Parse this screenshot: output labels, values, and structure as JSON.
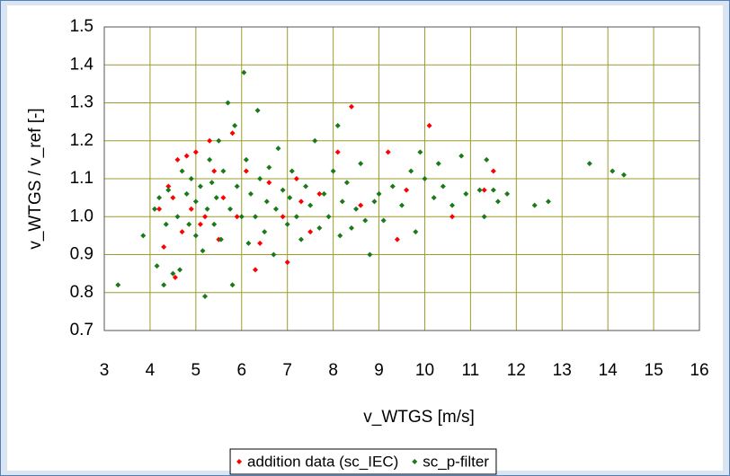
{
  "chart_data": {
    "type": "scatter",
    "xlabel": "v_WTGS [m/s]",
    "ylabel": "v_WTGS / v_ref [-]",
    "xlim": [
      3,
      16
    ],
    "xticks": [
      3,
      4,
      5,
      6,
      7,
      8,
      9,
      10,
      11,
      12,
      13,
      14,
      15,
      16
    ],
    "ylim": [
      0.7,
      1.5
    ],
    "yticks": [
      0.7,
      0.8,
      0.9,
      {
        "value": 1,
        "label": "1.0"
      },
      1.1,
      1.2,
      1.3,
      1.4,
      1.5
    ],
    "grid": true,
    "legend": "bottom",
    "series": [
      {
        "name": "addition data (sc_IEC)",
        "color": "#ff0000",
        "x": [
          4.2,
          4.3,
          4.4,
          4.5,
          4.55,
          4.6,
          4.7,
          4.8,
          4.9,
          5.0,
          5.1,
          5.2,
          5.3,
          5.4,
          5.5,
          5.6,
          5.8,
          5.9,
          6.1,
          6.3,
          6.4,
          6.6,
          6.9,
          7.0,
          7.2,
          7.3,
          7.5,
          7.7,
          8.1,
          8.4,
          8.6,
          9.2,
          9.4,
          9.6,
          10.1,
          10.6,
          11.3,
          11.5
        ],
        "values": [
          1.02,
          0.92,
          1.08,
          1.05,
          0.84,
          1.15,
          0.96,
          1.16,
          1.02,
          1.17,
          0.98,
          1.0,
          1.2,
          1.12,
          0.94,
          1.05,
          1.22,
          1.0,
          1.12,
          0.86,
          0.93,
          1.09,
          1.0,
          0.88,
          1.1,
          1.04,
          0.96,
          1.06,
          1.17,
          1.29,
          1.03,
          1.17,
          0.94,
          1.07,
          1.24,
          1.0,
          1.07,
          1.12
        ]
      },
      {
        "name": "sc_p-filter",
        "color": "#1a7a1a",
        "x": [
          3.3,
          3.85,
          4.1,
          4.15,
          4.2,
          4.3,
          4.35,
          4.4,
          4.5,
          4.6,
          4.65,
          4.7,
          4.8,
          4.85,
          4.9,
          5.0,
          5.0,
          5.1,
          5.15,
          5.2,
          5.25,
          5.3,
          5.35,
          5.4,
          5.45,
          5.5,
          5.55,
          5.6,
          5.7,
          5.75,
          5.8,
          5.85,
          5.9,
          6.0,
          6.05,
          6.1,
          6.15,
          6.2,
          6.3,
          6.35,
          6.4,
          6.5,
          6.55,
          6.6,
          6.7,
          6.75,
          6.8,
          6.9,
          7.0,
          7.05,
          7.1,
          7.2,
          7.3,
          7.4,
          7.5,
          7.6,
          7.7,
          7.8,
          7.9,
          8.0,
          8.1,
          8.15,
          8.2,
          8.3,
          8.4,
          8.5,
          8.6,
          8.7,
          8.8,
          8.9,
          9.0,
          9.1,
          9.3,
          9.5,
          9.7,
          9.8,
          9.9,
          10.0,
          10.2,
          10.3,
          10.4,
          10.6,
          10.8,
          10.9,
          11.2,
          11.3,
          11.35,
          11.5,
          11.6,
          11.8,
          12.4,
          12.7,
          13.6,
          14.1,
          14.35
        ],
        "values": [
          0.82,
          0.95,
          1.02,
          0.87,
          1.05,
          0.82,
          0.98,
          1.07,
          0.85,
          1.0,
          0.86,
          1.12,
          1.06,
          0.98,
          1.1,
          0.95,
          1.04,
          1.08,
          0.91,
          0.79,
          1.02,
          1.15,
          1.09,
          0.98,
          1.05,
          1.2,
          0.94,
          1.12,
          1.3,
          1.02,
          0.82,
          1.24,
          1.08,
          1.0,
          1.38,
          1.15,
          0.93,
          1.06,
          1.0,
          1.28,
          1.1,
          0.96,
          1.04,
          1.13,
          0.9,
          1.02,
          1.18,
          1.07,
          0.98,
          1.05,
          1.12,
          1.0,
          0.94,
          1.08,
          1.03,
          1.2,
          0.97,
          1.06,
          1.0,
          1.12,
          1.24,
          0.95,
          1.04,
          1.09,
          0.97,
          1.02,
          1.14,
          0.99,
          0.9,
          1.04,
          1.06,
          0.99,
          1.08,
          1.03,
          1.12,
          0.96,
          1.17,
          1.1,
          1.05,
          1.14,
          1.08,
          1.03,
          1.16,
          1.06,
          1.07,
          1.0,
          1.15,
          1.07,
          1.04,
          1.06,
          1.03,
          1.04,
          1.14,
          1.12,
          1.11
        ]
      }
    ]
  }
}
